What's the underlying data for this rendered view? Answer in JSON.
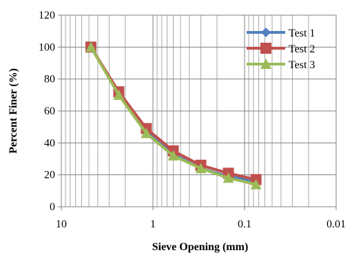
{
  "chart_data": {
    "type": "line",
    "xlabel": "Sieve Opening (mm)",
    "ylabel": "Percent Finer (%)",
    "x_scale": "log",
    "x_reversed": true,
    "xlim": [
      10,
      0.01
    ],
    "ylim": [
      0,
      120
    ],
    "x_ticks": [
      {
        "value": 10,
        "label": "10"
      },
      {
        "value": 1,
        "label": "1"
      },
      {
        "value": 0.1,
        "label": "0.1"
      },
      {
        "value": 0.01,
        "label": "0.01"
      }
    ],
    "y_ticks": [
      {
        "value": 0,
        "label": "0"
      },
      {
        "value": 20,
        "label": "20"
      },
      {
        "value": 40,
        "label": "40"
      },
      {
        "value": 60,
        "label": "60"
      },
      {
        "value": 80,
        "label": "80"
      },
      {
        "value": 100,
        "label": "100"
      },
      {
        "value": 120,
        "label": "120"
      }
    ],
    "grid": true,
    "legend_position": "top-right",
    "x": [
      4.75,
      2.36,
      1.18,
      0.6,
      0.3,
      0.15,
      0.075
    ],
    "series": [
      {
        "name": "Test 1",
        "color": "#4F81BD",
        "marker": "diamond",
        "values": [
          100,
          71,
          47,
          33,
          24,
          19,
          16
        ]
      },
      {
        "name": "Test 2",
        "color": "#C0504D",
        "marker": "square",
        "values": [
          100,
          72,
          49,
          35,
          26,
          21,
          17
        ]
      },
      {
        "name": "Test 3",
        "color": "#9BBB59",
        "marker": "triangle",
        "values": [
          100,
          70,
          46,
          32,
          24,
          18,
          14
        ]
      }
    ]
  }
}
